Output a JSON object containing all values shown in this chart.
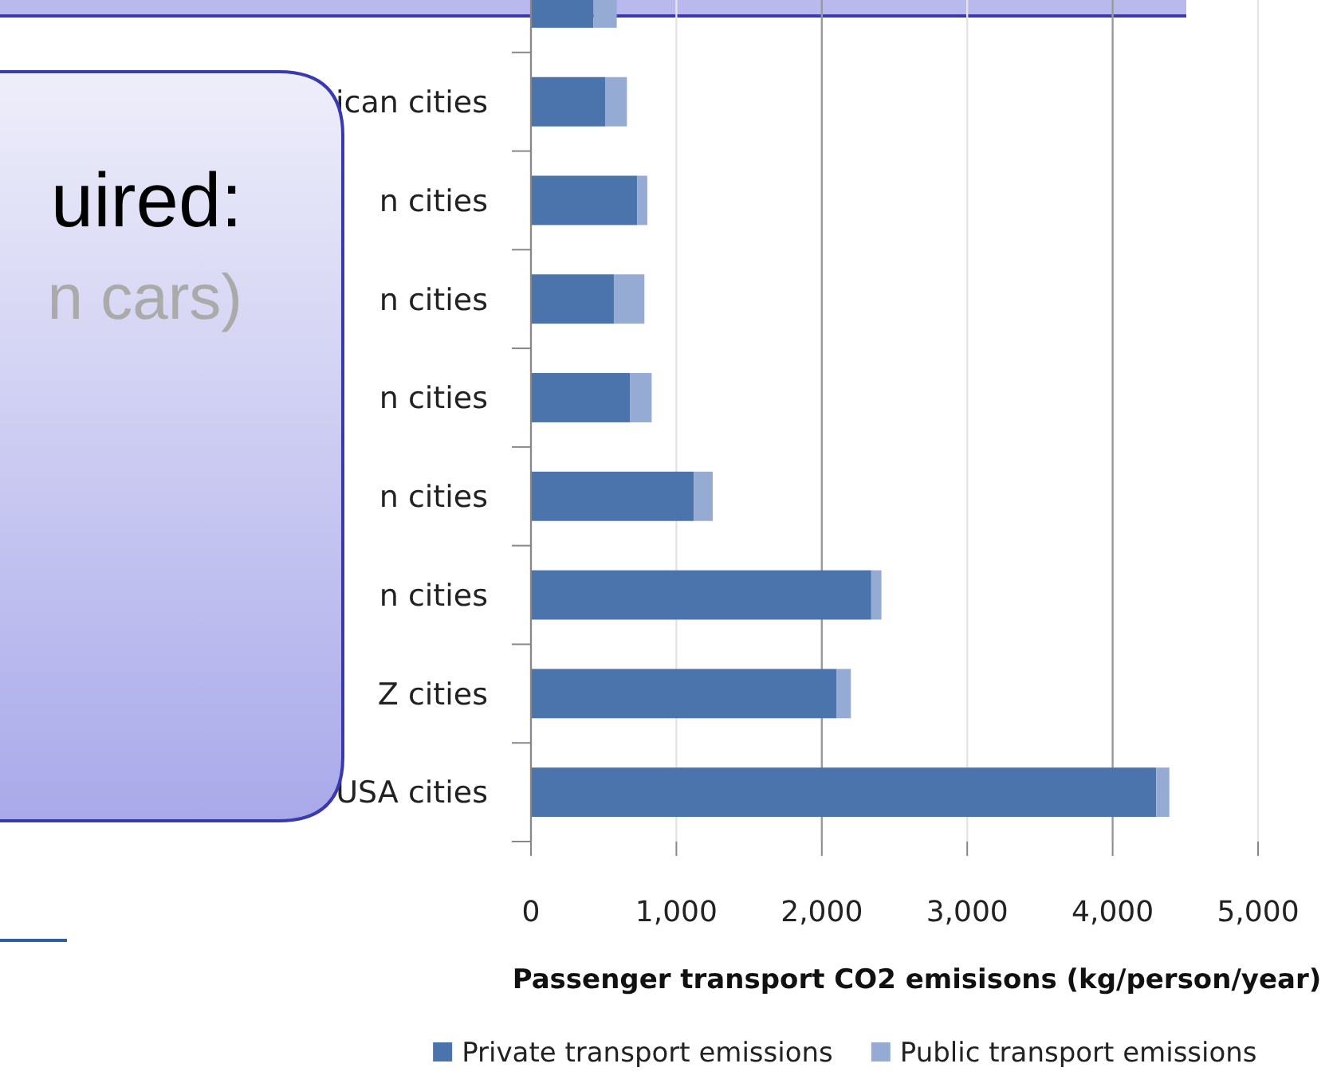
{
  "chart_data": {
    "type": "bar",
    "orientation": "horizontal",
    "stacked": true,
    "categories": [
      null,
      "ican cities",
      "n cities",
      "n cities",
      "n cities",
      "n cities",
      "n cities",
      "Z cities",
      "USA cities"
    ],
    "series": [
      {
        "name": "Private transport emissions",
        "color": "#4a74ab",
        "values": [
          430,
          510,
          730,
          570,
          680,
          1120,
          2340,
          2100,
          4300
        ]
      },
      {
        "name": "Public transport emissions",
        "color": "#95abd4",
        "values": [
          160,
          150,
          70,
          210,
          150,
          130,
          70,
          100,
          90
        ]
      }
    ],
    "xlim": [
      0,
      5000
    ],
    "xticks": [
      0,
      {
        "value": 1000,
        "label": "1,000"
      },
      {
        "value": 2000,
        "label": "2,000"
      },
      {
        "value": 3000,
        "label": "3,000"
      },
      {
        "value": 4000,
        "label": "4,000"
      },
      {
        "value": 5000,
        "label": "5,000"
      }
    ],
    "xlabel": "Passenger transport CO2 emisisons (kg/person/year)",
    "grid": "x",
    "legend": "bottom",
    "annotations": [
      "uired:",
      "n cars)"
    ]
  }
}
